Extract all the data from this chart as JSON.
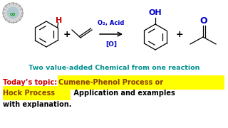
{
  "background_color": "#ffffff",
  "subtitle_text": "Two value-added Chemical from one reaction",
  "subtitle_color": "#009090",
  "subtitle_fontsize": 6.8,
  "topic_prefix": "Today’s topic: ",
  "topic_prefix_color": "#cc0000",
  "topic_highlight1": "Cumene-Phenol Process or",
  "topic_line2_highlight": "Hock Process",
  "topic_line2_rest": " Application and examples",
  "topic_line3": "with explanation.",
  "topic_line3_color": "#000000",
  "highlight_color": "#ffff00",
  "highlight_text_color": "#8B4000",
  "topic_fontsize": 7.0,
  "arrow_color": "#000000",
  "reagent_color": "#0000cc",
  "plus_color": "#000000",
  "H_color": "#cc0000",
  "OH_color": "#0000cc",
  "O_color": "#0000cc"
}
